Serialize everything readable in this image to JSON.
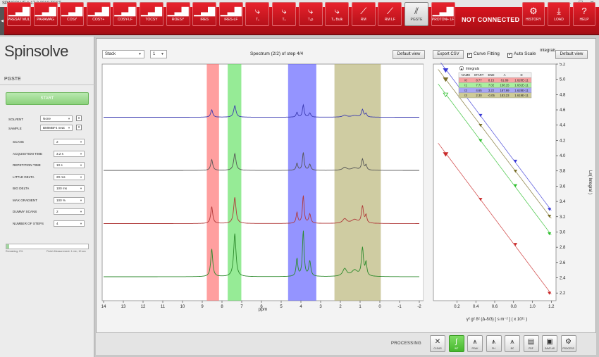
{
  "window": {
    "title": "SPINSOLVE 1.17.3.2018 TEST",
    "controls": {
      "minimize": "–",
      "maximize": "☐",
      "close": "✕"
    }
  },
  "toolbar": {
    "side_tab_icon": "◀",
    "buttons": [
      {
        "label": "PRESAT MULTI",
        "icon": "spectrum-icon",
        "glyph": "▁▃▇"
      },
      {
        "label": "PARAMAG",
        "icon": "spectrum-icon",
        "glyph": "▁▃▇"
      },
      {
        "label": "COSY",
        "icon": "spectrum-icon",
        "glyph": "▁▃▇"
      },
      {
        "label": "COSY+",
        "icon": "spectrum-icon",
        "glyph": "▁▃▇"
      },
      {
        "label": "COSY-LF",
        "icon": "spectrum-icon",
        "glyph": "▁▃▇"
      },
      {
        "label": "TOCSY",
        "icon": "spectrum-icon",
        "glyph": "▁▃▇"
      },
      {
        "label": "ROESY",
        "icon": "spectrum-icon",
        "glyph": "▁▃▇"
      },
      {
        "label": "IRES",
        "icon": "spectrum-icon",
        "glyph": "▁▃▇"
      },
      {
        "label": "IRES-LF",
        "icon": "spectrum-icon",
        "glyph": "▁▃▇"
      },
      {
        "label": "T₁",
        "icon": "decay-icon",
        "glyph": "⤷"
      },
      {
        "label": "T₂",
        "icon": "decay-icon",
        "glyph": "⤷"
      },
      {
        "label": "T₁ρ",
        "icon": "decay-icon",
        "glyph": "⤷"
      },
      {
        "label": "T₂ Bulk",
        "icon": "decay-icon",
        "glyph": "⤷"
      },
      {
        "label": "RM",
        "icon": "reaction-monitor-icon",
        "glyph": "⟋"
      },
      {
        "label": "RM LF",
        "icon": "reaction-monitor-icon",
        "glyph": "⟋"
      },
      {
        "label": "PGSTE",
        "icon": "diffusion-icon",
        "glyph": "⫽",
        "active": true
      },
      {
        "label": "PROTON+ LF",
        "icon": "spectrum-icon",
        "glyph": "▁▃▇"
      }
    ],
    "status": "NOT CONNECTED",
    "right_buttons": [
      {
        "label": "HISTORY",
        "icon": "gears-icon",
        "glyph": "⚙"
      },
      {
        "label": "LOAD",
        "icon": "download-icon",
        "glyph": "⤓"
      },
      {
        "label": "HELP",
        "icon": "help-icon",
        "glyph": "?"
      }
    ]
  },
  "sidebar": {
    "logo": "Spinsolve",
    "method": "PGSTE",
    "start_label": "START",
    "solvent": {
      "label": "SOLVENT",
      "value": "None"
    },
    "sample": {
      "label": "SAMPLE",
      "value": "BMIMBF4 neat"
    },
    "params": [
      {
        "label": "SCANS",
        "value": "2"
      },
      {
        "label": "ACQUISITION TIME",
        "value": "3.2 s"
      },
      {
        "label": "REPETITION TIME",
        "value": "10 s"
      },
      {
        "label": "LITTLE DELTA",
        "value": "20 ms"
      },
      {
        "label": "BIG DELTA",
        "value": "100 ms"
      },
      {
        "label": "MAX GRADIENT",
        "value": "100 %"
      },
      {
        "label": "DUMMY SCANS",
        "value": "2"
      },
      {
        "label": "NUMBER OF STEPS",
        "value": "4"
      }
    ],
    "progress_fraction": 1.0,
    "progress_left": "Remaining: 0%",
    "progress_right": "Finish Measurement: 1 min, 10 sec"
  },
  "spectrum": {
    "view_mode": "Stack",
    "step_select": "1",
    "title": "Spectrum (2/2) of step 4/4",
    "default_view": "Default view",
    "export_csv": "Export CSV",
    "curve_fitting": "Curve Fitting",
    "auto_scale": "Auto Scale",
    "xlabel": "ppm",
    "xticks": [
      "14",
      "13",
      "12",
      "11",
      "10",
      "9",
      "8",
      "7",
      "6",
      "5",
      "4",
      "3",
      "2",
      "1",
      "0",
      "-1",
      "-2"
    ],
    "regions": [
      {
        "name": "red",
        "color": "#ff6b6b",
        "from_ppm": 8.77,
        "to_ppm": 8.15
      },
      {
        "name": "green",
        "color": "#5ee05e",
        "from_ppm": 7.71,
        "to_ppm": 7.02
      },
      {
        "name": "blue",
        "color": "#5a5aff",
        "from_ppm": 4.65,
        "to_ppm": 3.22
      },
      {
        "name": "olive",
        "color": "#b5b070",
        "from_ppm": 2.3,
        "to_ppm": -0.05
      }
    ],
    "traces": [
      {
        "step": 1,
        "color": "#2c8a2c"
      },
      {
        "step": 2,
        "color": "#b03a3a"
      },
      {
        "step": 3,
        "color": "#555555"
      },
      {
        "step": 4,
        "color": "#3a3ab0"
      }
    ]
  },
  "integrals": {
    "legend_label": "Integrals",
    "headers": [
      "NAME",
      "START",
      "END",
      "A",
      "D"
    ],
    "rows": [
      {
        "name": "I0",
        "start": "8.77",
        "end": "8.15",
        "a": "61.89",
        "d": "1.628E-11",
        "color": "#f7a3a3"
      },
      {
        "name": "I1",
        "start": "7.71",
        "end": "7.02",
        "a": "158.15",
        "d": "1.631E-11",
        "color": "#a9ef9f"
      },
      {
        "name": "I2",
        "start": "4.65",
        "end": "3.22",
        "a": "187.99",
        "d": "1.628E-11",
        "color": "#a7a7f5"
      },
      {
        "name": "I3",
        "start": "2.30",
        "end": "-0.05",
        "a": "183.23",
        "d": "1.619E-11",
        "color": "#cdca98"
      }
    ]
  },
  "chart_data": {
    "type": "scatter",
    "title": "",
    "xlabel": "γ² g² δ² (Δ-δ/3)  [ s m⁻² ]  ( x 10¹¹ )",
    "ylabel": "Ln( Integral )",
    "header_label": "Integrals",
    "xlim": [
      -0.05,
      1.25
    ],
    "ylim": [
      2.1,
      5.2
    ],
    "xticks": [
      "0.2",
      "0.4",
      "0.6",
      "0.8",
      "1.0",
      "1.2"
    ],
    "yticks": [
      "2.2",
      "2.4",
      "2.6",
      "2.8",
      "3.0",
      "3.2",
      "3.4",
      "3.6",
      "3.8",
      "4.0",
      "4.2",
      "4.4",
      "4.6",
      "4.8",
      "5.0",
      "5.2"
    ],
    "series": [
      {
        "name": "I2",
        "color": "#3b3bd6",
        "marker": "down",
        "x": [
          0.08,
          0.45,
          0.82,
          1.18
        ],
        "y": [
          5.12,
          4.53,
          3.93,
          3.3
        ]
      },
      {
        "name": "I3",
        "color": "#7a6f2a",
        "marker": "down",
        "x": [
          0.08,
          0.45,
          0.82,
          1.18
        ],
        "y": [
          5.0,
          4.4,
          3.8,
          3.21
        ]
      },
      {
        "name": "I1",
        "color": "#2fbf2f",
        "marker": "down-open",
        "x": [
          0.08,
          0.45,
          0.82,
          1.18
        ],
        "y": [
          4.8,
          4.2,
          3.61,
          2.98
        ]
      },
      {
        "name": "I0",
        "color": "#c92a2a",
        "marker": "down",
        "x": [
          0.08,
          0.45,
          0.82,
          1.18
        ],
        "y": [
          4.02,
          3.43,
          2.84,
          2.2
        ]
      }
    ]
  },
  "processing": {
    "label": "PROCESSING",
    "buttons": [
      {
        "label": "CLEAR",
        "icon": "clear-icon",
        "glyph": "✕"
      },
      {
        "label": "INT",
        "icon": "integral-icon",
        "glyph": "∫",
        "on": true
      },
      {
        "label": "PEAK",
        "icon": "peak-pick-icon",
        "glyph": "⩚"
      },
      {
        "label": "PH",
        "icon": "phase-icon",
        "glyph": "⩚"
      },
      {
        "label": "BC",
        "icon": "baseline-icon",
        "glyph": "⩚"
      },
      {
        "label": "PDF",
        "icon": "pdf-icon",
        "glyph": "▤"
      },
      {
        "label": "SAVE AS",
        "icon": "save-icon",
        "glyph": "▣"
      },
      {
        "label": "PROCESS",
        "icon": "settings-icon",
        "glyph": "⚙"
      }
    ]
  }
}
